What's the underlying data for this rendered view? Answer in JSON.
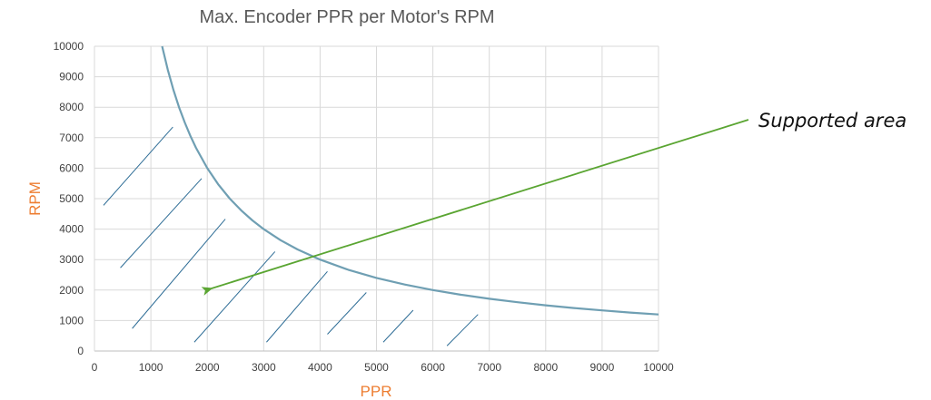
{
  "chart_data": {
    "type": "line",
    "title": "Max. Encoder PPR per Motor's RPM",
    "xlabel": "PPR",
    "ylabel": "RPM",
    "xlim": [
      0,
      10000
    ],
    "ylim": [
      0,
      10000
    ],
    "xticks": [
      0,
      1000,
      2000,
      3000,
      4000,
      5000,
      6000,
      7000,
      8000,
      9000,
      10000
    ],
    "yticks": [
      0,
      1000,
      2000,
      3000,
      4000,
      5000,
      6000,
      7000,
      8000,
      9000,
      10000
    ],
    "grid": true,
    "series": [
      {
        "color": "#6f9fb3",
        "x": [
          1200,
          1300,
          1400,
          1500,
          1600,
          1700,
          1800,
          2000,
          2200,
          2400,
          2600,
          2800,
          3000,
          3300,
          3600,
          4000,
          4500,
          5000,
          5500,
          6000,
          6500,
          7000,
          7500,
          8000,
          8500,
          9000,
          9500,
          10000
        ],
        "y": [
          10000,
          9231,
          8571,
          8000,
          7500,
          7059,
          6667,
          6000,
          5455,
          5000,
          4615,
          4286,
          4000,
          3636,
          3333,
          3000,
          2667,
          2400,
          2182,
          2000,
          1846,
          1714,
          1600,
          1500,
          1412,
          1333,
          1263,
          1200
        ]
      }
    ],
    "hatch": {
      "color": "#2e6d96",
      "lines": [
        [
          [
            160,
            4780
          ],
          [
            1390,
            7350
          ]
        ],
        [
          [
            460,
            2730
          ],
          [
            1900,
            5660
          ]
        ],
        [
          [
            670,
            740
          ],
          [
            2320,
            4330
          ]
        ],
        [
          [
            1770,
            290
          ],
          [
            3200,
            3260
          ]
        ],
        [
          [
            3050,
            290
          ],
          [
            4130,
            2610
          ]
        ],
        [
          [
            4130,
            550
          ],
          [
            4820,
            1920
          ]
        ],
        [
          [
            5120,
            290
          ],
          [
            5650,
            1340
          ]
        ],
        [
          [
            6250,
            170
          ],
          [
            6800,
            1200
          ]
        ]
      ]
    },
    "annotation": {
      "text": "Supported area",
      "color": "#5aa532",
      "arrow_tip": [
        2070,
        2050
      ]
    },
    "colors": {
      "axis_label": "#ed7d31",
      "grid": "#d9d9d9",
      "axis": "#bfbfbf"
    }
  }
}
